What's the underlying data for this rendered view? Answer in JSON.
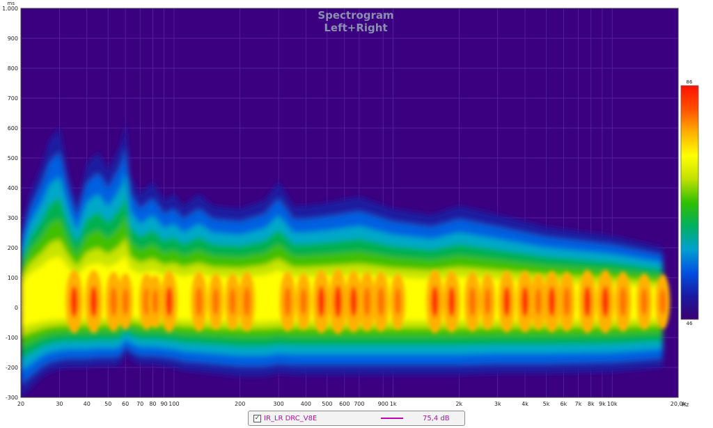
{
  "chart_data": {
    "type": "heatmap",
    "title": "Spectrogram",
    "subtitle": "Left+Right",
    "x_scale": "log",
    "xlim": [
      20,
      20000
    ],
    "ylim": [
      -300,
      1000
    ],
    "y_unit": "ms",
    "x_unit": "Hz",
    "x_ticks": [
      {
        "value": 20,
        "label": "20"
      },
      {
        "value": 30,
        "label": "30"
      },
      {
        "value": 40,
        "label": "40"
      },
      {
        "value": 50,
        "label": "50"
      },
      {
        "value": 60,
        "label": "60"
      },
      {
        "value": 70,
        "label": "70"
      },
      {
        "value": 80,
        "label": "80"
      },
      {
        "value": 90,
        "label": "90"
      },
      {
        "value": 100,
        "label": "100"
      },
      {
        "value": 200,
        "label": "200"
      },
      {
        "value": 300,
        "label": "300"
      },
      {
        "value": 400,
        "label": "400"
      },
      {
        "value": 500,
        "label": "500"
      },
      {
        "value": 600,
        "label": "600"
      },
      {
        "value": 700,
        "label": "700"
      },
      {
        "value": 900,
        "label": "900"
      },
      {
        "value": 1000,
        "label": "1k"
      },
      {
        "value": 2000,
        "label": "2k"
      },
      {
        "value": 3000,
        "label": "3k"
      },
      {
        "value": 4000,
        "label": "4k"
      },
      {
        "value": 5000,
        "label": "5k"
      },
      {
        "value": 6000,
        "label": "6k"
      },
      {
        "value": 7000,
        "label": "7k"
      },
      {
        "value": 8000,
        "label": "8k"
      },
      {
        "value": 9000,
        "label": "9k"
      },
      {
        "value": 10000,
        "label": "10k"
      },
      {
        "value": 20000,
        "label": "20,0k"
      }
    ],
    "y_ticks": [
      {
        "value": 1000,
        "label": "1.000"
      },
      {
        "value": 900,
        "label": "900"
      },
      {
        "value": 800,
        "label": "800"
      },
      {
        "value": 700,
        "label": "700"
      },
      {
        "value": 600,
        "label": "600"
      },
      {
        "value": 500,
        "label": "500"
      },
      {
        "value": 400,
        "label": "400"
      },
      {
        "value": 300,
        "label": "300"
      },
      {
        "value": 200,
        "label": "200"
      },
      {
        "value": 100,
        "label": "100"
      },
      {
        "value": 0,
        "label": "0"
      },
      {
        "value": -100,
        "label": "-100"
      },
      {
        "value": -200,
        "label": "-200"
      },
      {
        "value": -300,
        "label": "-300"
      }
    ],
    "color_scale": {
      "min": 46,
      "max": 86,
      "min_label": "46",
      "max_label": "86",
      "colors": [
        "#3a0070",
        "#1a1aa0",
        "#0050e0",
        "#00a0d0",
        "#00b060",
        "#30c000",
        "#c0e000",
        "#ffff00",
        "#ffb000",
        "#ff5000",
        "#ff1000"
      ]
    },
    "background_color": "#3b0080",
    "envelope": {
      "freq": [
        20,
        22,
        25,
        27,
        30,
        33,
        36,
        40,
        45,
        50,
        55,
        58,
        60,
        63,
        70,
        80,
        90,
        100,
        110,
        130,
        150,
        200,
        260,
        300,
        350,
        400,
        500,
        700,
        1000,
        1500,
        2000,
        3000,
        5000,
        10000,
        17000
      ],
      "top_ms": [
        250,
        380,
        480,
        560,
        600,
        450,
        350,
        480,
        520,
        460,
        520,
        560,
        620,
        440,
        380,
        420,
        360,
        380,
        340,
        380,
        340,
        330,
        360,
        420,
        340,
        340,
        350,
        370,
        330,
        310,
        340,
        310,
        270,
        240,
        200
      ],
      "bottom_ms": [
        -300,
        -270,
        -230,
        -215,
        -205,
        -200,
        -200,
        -200,
        -195,
        -195,
        -195,
        -180,
        -150,
        -170,
        -190,
        -190,
        -195,
        -200,
        -210,
        -215,
        -220,
        -230,
        -230,
        -220,
        -225,
        -225,
        -225,
        -225,
        -225,
        -225,
        -225,
        -220,
        -220,
        -215,
        -200
      ]
    },
    "peaks": [
      {
        "freq": 35,
        "level": 84
      },
      {
        "freq": 43,
        "level": 84
      },
      {
        "freq": 53,
        "level": 82
      },
      {
        "freq": 60,
        "level": 80
      },
      {
        "freq": 75,
        "level": 80
      },
      {
        "freq": 82,
        "level": 78
      },
      {
        "freq": 95,
        "level": 83
      },
      {
        "freq": 130,
        "level": 82
      },
      {
        "freq": 155,
        "level": 80
      },
      {
        "freq": 185,
        "level": 80
      },
      {
        "freq": 215,
        "level": 82
      },
      {
        "freq": 330,
        "level": 82
      },
      {
        "freq": 390,
        "level": 80
      },
      {
        "freq": 470,
        "level": 84
      },
      {
        "freq": 560,
        "level": 85
      },
      {
        "freq": 660,
        "level": 83
      },
      {
        "freq": 760,
        "level": 82
      },
      {
        "freq": 880,
        "level": 82
      },
      {
        "freq": 1050,
        "level": 80
      },
      {
        "freq": 1550,
        "level": 84
      },
      {
        "freq": 1850,
        "level": 83
      },
      {
        "freq": 2300,
        "level": 82
      },
      {
        "freq": 2700,
        "level": 80
      },
      {
        "freq": 3300,
        "level": 83
      },
      {
        "freq": 4000,
        "level": 83
      },
      {
        "freq": 4600,
        "level": 80
      },
      {
        "freq": 5300,
        "level": 83
      },
      {
        "freq": 6200,
        "level": 82
      },
      {
        "freq": 7700,
        "level": 84
      },
      {
        "freq": 9300,
        "level": 84
      },
      {
        "freq": 11200,
        "level": 82
      },
      {
        "freq": 14000,
        "level": 80
      },
      {
        "freq": 17000,
        "level": 79
      }
    ],
    "legend": {
      "checked": true,
      "name": "IR_LR DRC_V8E",
      "color": "#c000b0",
      "value": "75,4 dB"
    }
  }
}
